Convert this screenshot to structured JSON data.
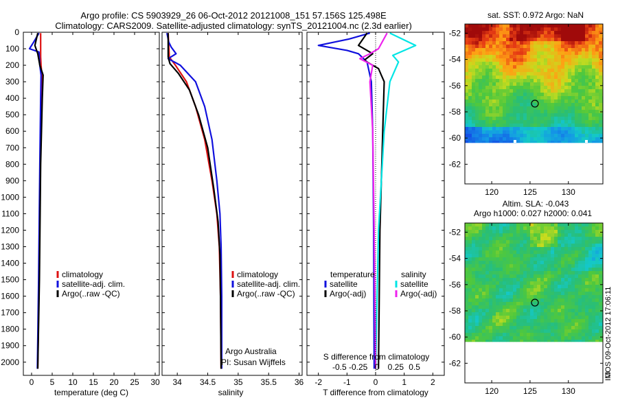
{
  "title_line1": "Argo profile: CS 5903929_26 06-Oct-2012 20121008_151 57.156S 125.498E",
  "title_line2": "Climatology: CARS2009. Satellite-adjusted climatology: synTS_20121004.nc (2.3d earlier)",
  "footer": "IMOS 09-Oct-2012 17:06:11",
  "depth_ticks": [
    0,
    100,
    200,
    300,
    400,
    500,
    600,
    700,
    800,
    900,
    1000,
    1100,
    1200,
    1300,
    1400,
    1500,
    1600,
    1700,
    1800,
    1900,
    2000
  ],
  "colors": {
    "red": "#dd1111",
    "blue": "#1010dd",
    "black": "#000000",
    "cyan": "#00e5e5",
    "magenta": "#ee22ee"
  },
  "chart_data": [
    {
      "type": "line",
      "id": "temperature",
      "xlabel": "temperature (deg C)",
      "xlim": [
        -2,
        31
      ],
      "ylim": [
        2080,
        0
      ],
      "xticks": [
        0,
        5,
        10,
        15,
        20,
        25,
        30
      ],
      "legend": [
        "climatology",
        "satellite-adj. clim.",
        "Argo(..raw -QC)"
      ],
      "series": [
        {
          "name": "climatology",
          "color": "#dd1111",
          "points": [
            [
              2.2,
              5
            ],
            [
              2.2,
              150
            ],
            [
              2.3,
              200
            ],
            [
              2.5,
              260
            ],
            [
              2.4,
              400
            ],
            [
              2.1,
              800
            ],
            [
              1.8,
              1500
            ],
            [
              1.5,
              2040
            ]
          ]
        },
        {
          "name": "satellite-adj. clim.",
          "color": "#1010dd",
          "points": [
            [
              1.8,
              5
            ],
            [
              0.5,
              60
            ],
            [
              -0.5,
              100
            ],
            [
              1.8,
              120
            ],
            [
              2.0,
              200
            ],
            [
              2.3,
              260
            ],
            [
              2.2,
              400
            ],
            [
              2.0,
              800
            ],
            [
              1.7,
              1500
            ],
            [
              1.4,
              2040
            ]
          ]
        },
        {
          "name": "Argo(..raw -QC)",
          "color": "#000000",
          "points": [
            [
              1.5,
              5
            ],
            [
              0.8,
              80
            ],
            [
              1.5,
              130
            ],
            [
              2.0,
              200
            ],
            [
              2.8,
              260
            ],
            [
              2.6,
              400
            ],
            [
              2.2,
              800
            ],
            [
              1.9,
              1500
            ],
            [
              1.5,
              2040
            ]
          ]
        }
      ]
    },
    {
      "type": "line",
      "id": "salinity",
      "xlabel": "salinity",
      "xlim": [
        33.75,
        36.05
      ],
      "ylim": [
        2080,
        0
      ],
      "xticks": [
        34,
        34.5,
        35,
        35.5,
        36
      ],
      "xticklabels": [
        "34",
        "34.5",
        "35",
        "35.5",
        "36"
      ],
      "legend": [
        "climatology",
        "satellite-adj. clim.",
        "Argo(..raw -QC)"
      ],
      "annotations": [
        "Argo Australia",
        "PI: Susan Wijffels"
      ],
      "series": [
        {
          "name": "climatology",
          "color": "#dd1111",
          "points": [
            [
              33.85,
              5
            ],
            [
              33.87,
              150
            ],
            [
              33.97,
              200
            ],
            [
              34.15,
              300
            ],
            [
              34.3,
              450
            ],
            [
              34.45,
              650
            ],
            [
              34.57,
              900
            ],
            [
              34.65,
              1100
            ],
            [
              34.69,
              1300
            ],
            [
              34.71,
              1600
            ],
            [
              34.72,
              2040
            ]
          ]
        },
        {
          "name": "satellite-adj. clim.",
          "color": "#1010dd",
          "points": [
            [
              33.83,
              5
            ],
            [
              33.86,
              60
            ],
            [
              33.9,
              90
            ],
            [
              33.98,
              130
            ],
            [
              33.85,
              160
            ],
            [
              34.05,
              200
            ],
            [
              34.3,
              300
            ],
            [
              34.45,
              450
            ],
            [
              34.57,
              650
            ],
            [
              34.65,
              900
            ],
            [
              34.7,
              1100
            ],
            [
              34.72,
              1300
            ],
            [
              34.73,
              1600
            ],
            [
              34.73,
              2040
            ]
          ]
        },
        {
          "name": "Argo(..raw -QC)",
          "color": "#000000",
          "points": [
            [
              33.85,
              5
            ],
            [
              33.85,
              150
            ],
            [
              33.88,
              190
            ],
            [
              34.02,
              250
            ],
            [
              34.2,
              350
            ],
            [
              34.35,
              500
            ],
            [
              34.5,
              700
            ],
            [
              34.6,
              950
            ],
            [
              34.67,
              1150
            ],
            [
              34.7,
              1350
            ],
            [
              34.71,
              1600
            ],
            [
              34.72,
              2040
            ]
          ]
        }
      ]
    },
    {
      "type": "line",
      "id": "difference",
      "xlabel": "T difference from climatology",
      "top_xlabel": "S difference from climatology",
      "xlim": [
        -2.4,
        2.4
      ],
      "ylim": [
        2080,
        0
      ],
      "xticks": [
        -2,
        -1,
        0,
        1,
        2
      ],
      "top_xticks": [
        -0.5,
        -0.25,
        0,
        0.25,
        0.5
      ],
      "top_xticklabels": [
        "-0.5",
        "-0.25",
        "0",
        "0.25",
        "0.5"
      ],
      "legend_headers": [
        "temperature",
        "salinity"
      ],
      "legend": [
        "satellite",
        "Argo(-adj)",
        "satellite",
        "Argo(-adj)"
      ],
      "series": [
        {
          "name": "satellite",
          "group": "temperature",
          "color": "#1010dd",
          "points": [
            [
              -0.2,
              5
            ],
            [
              -0.9,
              40
            ],
            [
              -2.0,
              80
            ],
            [
              -1.0,
              110
            ],
            [
              -0.6,
              130
            ],
            [
              -0.3,
              180
            ],
            [
              -0.15,
              300
            ],
            [
              -0.1,
              600
            ],
            [
              -0.07,
              1200
            ],
            [
              -0.05,
              2040
            ]
          ]
        },
        {
          "name": "Argo(-adj)",
          "group": "temperature",
          "color": "#000000",
          "points": [
            [
              -0.3,
              5
            ],
            [
              -0.6,
              80
            ],
            [
              -0.1,
              130
            ],
            [
              -0.4,
              170
            ],
            [
              0.1,
              220
            ],
            [
              0.2,
              260
            ],
            [
              0.3,
              300
            ],
            [
              0.25,
              600
            ],
            [
              0.15,
              1200
            ],
            [
              0.1,
              2040
            ]
          ]
        },
        {
          "name": "satellite",
          "group": "salinity",
          "color": "#00e5e5",
          "points": [
            [
              0.5,
              5
            ],
            [
              1.4,
              80
            ],
            [
              0.6,
              140
            ],
            [
              0.8,
              180
            ],
            [
              0.5,
              300
            ],
            [
              0.3,
              600
            ],
            [
              0.1,
              1200
            ],
            [
              0.0,
              2040
            ]
          ]
        },
        {
          "name": "Argo(-adj)",
          "group": "salinity",
          "color": "#ee22ee",
          "points": [
            [
              0.4,
              5
            ],
            [
              0.1,
              100
            ],
            [
              -0.2,
              130
            ],
            [
              -0.55,
              160
            ],
            [
              -0.1,
              200
            ],
            [
              -0.2,
              300
            ],
            [
              -0.1,
              600
            ],
            [
              -0.05,
              1200
            ],
            [
              0.0,
              2040
            ]
          ]
        }
      ]
    },
    {
      "type": "heatmap",
      "id": "sst",
      "title": "sat. SST: 0.972  Argo: NaN",
      "xticks": [
        120,
        125,
        130
      ],
      "yticks": [
        -52,
        -54,
        -56,
        -58,
        -60,
        -62
      ],
      "xlim": [
        116.5,
        134.5
      ],
      "ylim": [
        -63.5,
        -51.3
      ],
      "data_extent": [
        -60.1,
        -51.3
      ],
      "marker": [
        125.5,
        -57.15
      ]
    },
    {
      "type": "heatmap",
      "id": "sla",
      "title_line1": "Altim. SLA: -0.043",
      "title_line2": "Argo h1000: 0.027  h2000: 0.041",
      "xticks": [
        120,
        125,
        130
      ],
      "yticks": [
        -52,
        -54,
        -56,
        -58,
        -60,
        -62
      ],
      "xlim": [
        116.5,
        134.5
      ],
      "ylim": [
        -63.5,
        -51.3
      ],
      "data_extent": [
        -60.1,
        -51.3
      ],
      "marker": [
        125.5,
        -57.15
      ]
    }
  ]
}
